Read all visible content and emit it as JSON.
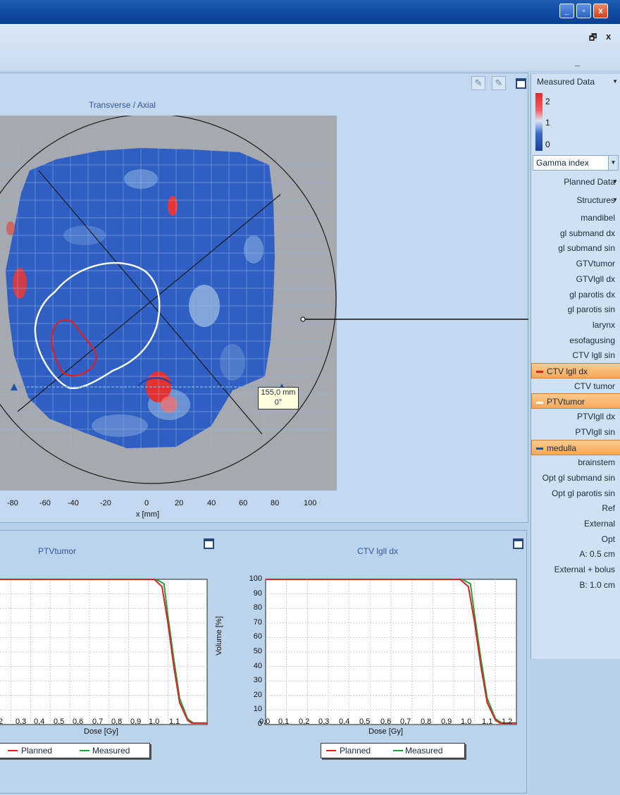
{
  "window": {
    "minimize_label": "_",
    "restore_label": "▫",
    "close_label": "x",
    "mdi_minimize": "_",
    "mdi_restore": "🗗",
    "mdi_close": "x"
  },
  "viewer": {
    "title": "Transverse / Axial",
    "x_axis_label": "x [mm]",
    "x_ticks": [
      "-80",
      "-60",
      "-40",
      "-20",
      "0",
      "20",
      "40",
      "60",
      "80",
      "100"
    ],
    "measurement_label_line1": "155,0 mm",
    "measurement_label_line2": "0°",
    "zoom_in_icon": "zoom-in-icon",
    "zoom_out_icon": "zoom-out-icon"
  },
  "sidebar": {
    "measured_header": "Measured Data",
    "scale_labels": [
      "2",
      "1",
      "0"
    ],
    "gamma_select": "Gamma index",
    "planned_header": "Planned Data",
    "structures_header": "Structures",
    "items": [
      {
        "label": "mandibel"
      },
      {
        "label": "gl submand dx"
      },
      {
        "label": "gl submand sin"
      },
      {
        "label": "GTVtumor"
      },
      {
        "label": "GTVlgll dx"
      },
      {
        "label": "gl parotis dx"
      },
      {
        "label": "gl parotis sin"
      },
      {
        "label": "larynx"
      },
      {
        "label": "esofagusing"
      },
      {
        "label": "CTV lgll sin"
      },
      {
        "label": "CTV lgll dx",
        "selected": true,
        "color": "#e02020"
      },
      {
        "label": "CTV tumor"
      },
      {
        "label": "PTVtumor",
        "selected": true,
        "color": "#ffffff"
      },
      {
        "label": "PTVlgll dx"
      },
      {
        "label": "PTVlgll sin"
      },
      {
        "label": "medulla",
        "selected": true,
        "color": "#1f4fb0"
      },
      {
        "label": "brainstem"
      },
      {
        "label": "Opt gl submand sin"
      },
      {
        "label": "Opt gl parotis sin"
      },
      {
        "label": "Ref"
      },
      {
        "label": "External"
      },
      {
        "label": "Opt"
      },
      {
        "label": "A: 0.5 cm"
      },
      {
        "label": "External + bolus"
      },
      {
        "label": "B: 1.0 cm"
      }
    ]
  },
  "dvh_left": {
    "title": "PTVtumor",
    "xlabel": "Dose [Gy]",
    "x_ticks": [
      ",2",
      "0,3",
      "0,4",
      "0,5",
      "0,6",
      "0,7",
      "0,8",
      "0,9",
      "1,0",
      "1,1"
    ],
    "legend": [
      "Planned",
      "Measured"
    ]
  },
  "dvh_right": {
    "title": "CTV lgll dx",
    "xlabel": "Dose [Gy]",
    "ylabel": "Volume [%]",
    "y_ticks": [
      "100",
      "90",
      "80",
      "70",
      "60",
      "50",
      "40",
      "30",
      "20",
      "10",
      "0"
    ],
    "x_ticks": [
      "0,0",
      "0,1",
      "0,2",
      "0,3",
      "0,4",
      "0,5",
      "0,6",
      "0,7",
      "0,8",
      "0,9",
      "1,0",
      "1,1",
      "1,2"
    ],
    "legend": [
      "Planned",
      "Measured"
    ]
  },
  "colors": {
    "planned": "#e02020",
    "measured": "#20a040",
    "accent": "#0e4aa4"
  }
}
